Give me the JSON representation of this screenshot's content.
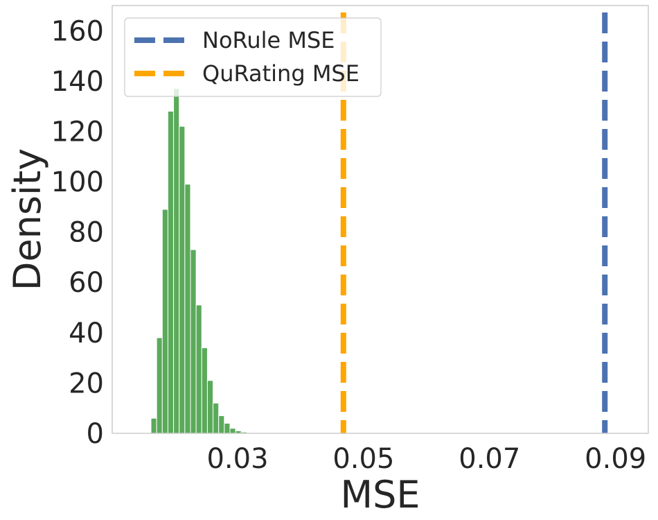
{
  "chart_data": {
    "type": "histogram",
    "title": "",
    "xlabel": "MSE",
    "ylabel": "Density",
    "xlim": [
      0.0101,
      0.0952
    ],
    "ylim": [
      0,
      170
    ],
    "x_ticks": [
      {
        "value": 0.03,
        "label": "0.03"
      },
      {
        "value": 0.05,
        "label": "0.05"
      },
      {
        "value": 0.07,
        "label": "0.07"
      },
      {
        "value": 0.09,
        "label": "0.09"
      }
    ],
    "y_ticks": [
      {
        "value": 0,
        "label": "0"
      },
      {
        "value": 20,
        "label": "20"
      },
      {
        "value": 40,
        "label": "40"
      },
      {
        "value": 60,
        "label": "60"
      },
      {
        "value": 80,
        "label": "80"
      },
      {
        "value": 100,
        "label": "100"
      },
      {
        "value": 120,
        "label": "120"
      },
      {
        "value": 140,
        "label": "140"
      },
      {
        "value": 160,
        "label": "160"
      }
    ],
    "grid": false,
    "legend_position": "upper-left",
    "histogram": {
      "color": "#5aaa5a",
      "bin_width": 0.000895,
      "bins": [
        {
          "x0": 0.01626,
          "density": 6
        },
        {
          "x0": 0.017155,
          "density": 38
        },
        {
          "x0": 0.01805,
          "density": 89
        },
        {
          "x0": 0.018945,
          "density": 128
        },
        {
          "x0": 0.01984,
          "density": 137
        },
        {
          "x0": 0.020735,
          "density": 122
        },
        {
          "x0": 0.02163,
          "density": 99
        },
        {
          "x0": 0.022525,
          "density": 73
        },
        {
          "x0": 0.02342,
          "density": 51
        },
        {
          "x0": 0.024315,
          "density": 34
        },
        {
          "x0": 0.02521,
          "density": 21
        },
        {
          "x0": 0.026105,
          "density": 12
        },
        {
          "x0": 0.027,
          "density": 7
        },
        {
          "x0": 0.027895,
          "density": 4
        },
        {
          "x0": 0.02879,
          "density": 2
        },
        {
          "x0": 0.029685,
          "density": 1
        },
        {
          "x0": 0.03058,
          "density": 0.5
        },
        {
          "x0": 0.031475,
          "density": 0.2
        }
      ]
    },
    "reference_lines": [
      {
        "name": "NoRule MSE",
        "x": 0.0883,
        "color": "#4c72b0",
        "style": "dashed"
      },
      {
        "name": "QuRating MSE",
        "x": 0.0468,
        "color": "#ffa500",
        "style": "dashed"
      }
    ]
  }
}
